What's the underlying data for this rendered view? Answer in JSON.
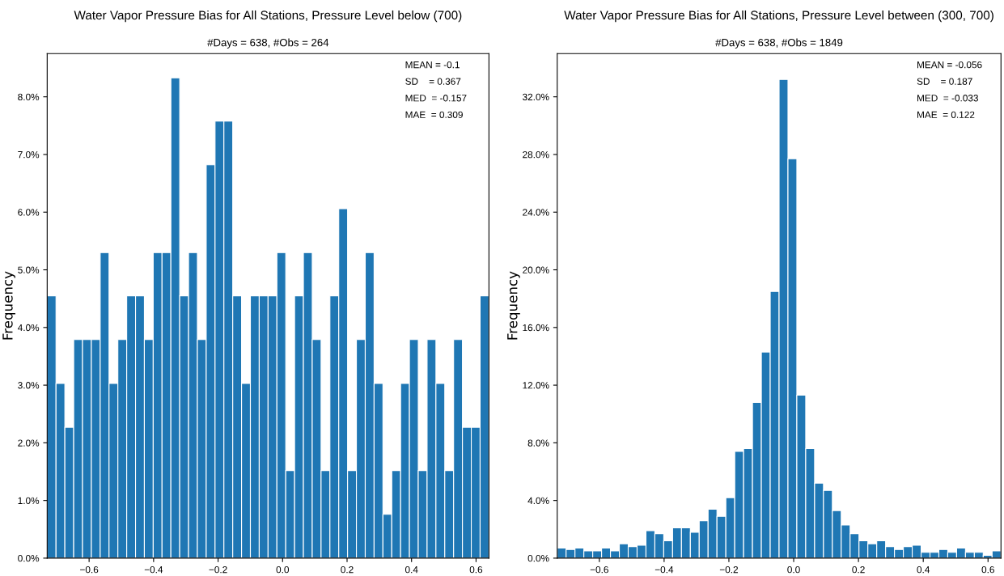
{
  "chart_data": [
    {
      "type": "histogram",
      "title": "Water Vapor Pressure Bias for All Stations, Pressure Level below (700)",
      "subtitle": "#Days = 638, #Obs = 264",
      "ylabel": "Frequency",
      "color": "#1f77b4",
      "bins": [
        -0.73,
        -0.7026,
        -0.6752,
        -0.6478,
        -0.6204,
        -0.593,
        -0.5656,
        -0.5382,
        -0.5108,
        -0.4834,
        -0.456,
        -0.4286,
        -0.4012,
        -0.3738,
        -0.3464,
        -0.319,
        -0.2916,
        -0.2642,
        -0.2368,
        -0.2094,
        -0.182,
        -0.1546,
        -0.1272,
        -0.0998,
        -0.0724,
        -0.045,
        -0.0176,
        0.0098,
        0.0372,
        0.0646,
        0.092,
        0.1194,
        0.1468,
        0.1742,
        0.2016,
        0.229,
        0.2564,
        0.2838,
        0.3112,
        0.3386,
        0.366,
        0.3934,
        0.4208,
        0.4482,
        0.4756,
        0.503,
        0.5304,
        0.5578,
        0.5852,
        0.6126,
        0.64
      ],
      "values": [
        4.55,
        3.03,
        2.27,
        3.79,
        3.79,
        3.79,
        5.3,
        3.03,
        3.79,
        4.55,
        4.55,
        3.79,
        5.3,
        5.3,
        8.33,
        4.55,
        5.3,
        3.79,
        6.82,
        7.58,
        7.58,
        4.55,
        3.03,
        4.55,
        4.55,
        4.55,
        5.3,
        1.52,
        4.55,
        5.3,
        3.79,
        1.52,
        4.55,
        6.06,
        1.52,
        3.79,
        5.3,
        3.03,
        0.76,
        1.52,
        3.03,
        3.79,
        1.52,
        3.79,
        3.03,
        1.52,
        3.79,
        2.27,
        2.27,
        4.55
      ],
      "xlim": [
        -0.73,
        0.64
      ],
      "xticks": [
        {
          "value": -0.6,
          "label": "−0.6"
        },
        {
          "value": -0.4,
          "label": "−0.4"
        },
        {
          "value": -0.2,
          "label": "−0.2"
        },
        {
          "value": 0,
          "label": "0.0"
        },
        0.2,
        0.4,
        0.6
      ],
      "ylim": [
        0,
        8.75
      ],
      "yticks": [
        {
          "value": 0,
          "label": "0.0%"
        },
        {
          "value": 1,
          "label": "1.0%"
        },
        {
          "value": 2,
          "label": "2.0%"
        },
        {
          "value": 3,
          "label": "3.0%"
        },
        {
          "value": 4,
          "label": "4.0%"
        },
        {
          "value": 5,
          "label": "5.0%"
        },
        {
          "value": 6,
          "label": "6.0%"
        },
        {
          "value": 7,
          "label": "7.0%"
        },
        {
          "value": 8,
          "label": "8.0%"
        }
      ],
      "annotations": [
        "MEAN = -0.1",
        "SD    = 0.367",
        "MED  = -0.157",
        "MAE  = 0.309"
      ],
      "grid": false,
      "legend": false
    },
    {
      "type": "histogram",
      "title": "Water Vapor Pressure Bias for All Stations, Pressure Level between (300, 700)",
      "subtitle": "#Days = 638, #Obs = 1849",
      "ylabel": "Frequency",
      "color": "#1f77b4",
      "bins": [
        -0.73,
        -0.7026,
        -0.6752,
        -0.6478,
        -0.6204,
        -0.593,
        -0.5656,
        -0.5382,
        -0.5108,
        -0.4834,
        -0.456,
        -0.4286,
        -0.4012,
        -0.3738,
        -0.3464,
        -0.319,
        -0.2916,
        -0.2642,
        -0.2368,
        -0.2094,
        -0.182,
        -0.1546,
        -0.1272,
        -0.0998,
        -0.0724,
        -0.045,
        -0.0176,
        0.0098,
        0.0372,
        0.0646,
        0.092,
        0.1194,
        0.1468,
        0.1742,
        0.2016,
        0.229,
        0.2564,
        0.2838,
        0.3112,
        0.3386,
        0.366,
        0.3934,
        0.4208,
        0.4482,
        0.4756,
        0.503,
        0.5304,
        0.5578,
        0.5852,
        0.6126,
        0.64
      ],
      "values": [
        0.7,
        0.6,
        0.7,
        0.5,
        0.5,
        0.7,
        0.5,
        1.0,
        0.8,
        0.9,
        1.9,
        1.7,
        1.2,
        2.1,
        2.1,
        1.8,
        2.6,
        3.4,
        2.9,
        4.2,
        7.4,
        7.6,
        10.8,
        14.3,
        18.5,
        33.2,
        27.7,
        11.3,
        7.6,
        5.2,
        4.7,
        3.3,
        2.3,
        1.7,
        1.2,
        1.0,
        1.2,
        0.8,
        0.6,
        0.8,
        0.9,
        0.4,
        0.4,
        0.6,
        0.4,
        0.7,
        0.4,
        0.4,
        0.2,
        0.5
      ],
      "xlim": [
        -0.73,
        0.64
      ],
      "xticks": [
        {
          "value": -0.6,
          "label": "−0.6"
        },
        {
          "value": -0.4,
          "label": "−0.4"
        },
        {
          "value": -0.2,
          "label": "−0.2"
        },
        {
          "value": 0,
          "label": "0.0"
        },
        0.2,
        0.4,
        0.6
      ],
      "ylim": [
        0,
        35
      ],
      "yticks": [
        {
          "value": 0,
          "label": "0.0%"
        },
        {
          "value": 4,
          "label": "4.0%"
        },
        {
          "value": 8,
          "label": "8.0%"
        },
        {
          "value": 12,
          "label": "12.0%"
        },
        {
          "value": 16,
          "label": "16.0%"
        },
        {
          "value": 20,
          "label": "20.0%"
        },
        {
          "value": 24,
          "label": "24.0%"
        },
        {
          "value": 28,
          "label": "28.0%"
        },
        {
          "value": 32,
          "label": "32.0%"
        }
      ],
      "annotations": [
        "MEAN = -0.056",
        "SD    = 0.187",
        "MED  = -0.033",
        "MAE  = 0.122"
      ],
      "grid": false,
      "legend": false
    }
  ]
}
